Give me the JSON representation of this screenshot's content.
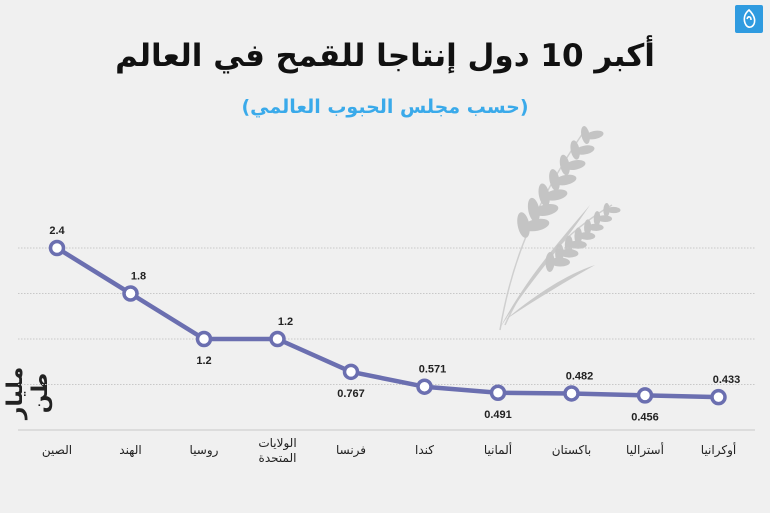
{
  "header": {
    "title": "أكبر 10 دول إنتاجا للقمح في العالم",
    "subtitle": "(حسب مجلس الحبوب العالمي)",
    "logo": "aljazeera-logo"
  },
  "colors": {
    "line": "#6b6fb0",
    "subtitle": "#3aaaea",
    "logo": "#2f9be0",
    "wheat": "#c4c4c4"
  },
  "chart_data": {
    "type": "line",
    "title": "أكبر 10 دول إنتاجا للقمح في العالم",
    "subtitle": "(حسب مجلس الحبوب العالمي)",
    "ylabel": "مليار طن",
    "xlabel": "",
    "ylim": [
      0,
      2.4
    ],
    "grid": true,
    "categories": [
      "الصين",
      "الهند",
      "روسيا",
      "الولايات المتحدة",
      "فرنسا",
      "كندا",
      "ألمانيا",
      "باكستان",
      "أستراليا",
      "أوكرانيا"
    ],
    "values": [
      2.4,
      1.8,
      1.2,
      1.2,
      0.767,
      0.571,
      0.491,
      0.482,
      0.456,
      0.433
    ],
    "value_labels": [
      "2.4",
      "1.8",
      "1.2",
      "1.2",
      "0.767",
      "0.571",
      "0.491",
      "0.482",
      "0.456",
      "0.433"
    ],
    "label_positions": [
      "above",
      "above",
      "below",
      "above",
      "below",
      "above",
      "below",
      "above",
      "below",
      "above"
    ]
  }
}
